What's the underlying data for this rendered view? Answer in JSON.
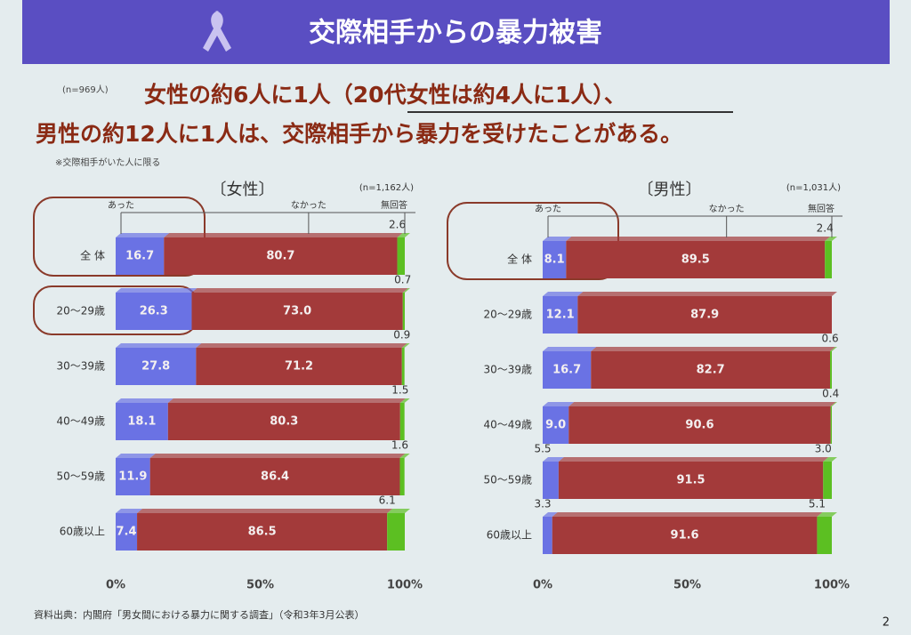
{
  "slide": {
    "title": "交際相手からの暴力被害",
    "sample": "(n=969人)",
    "headline_1": "女性の約6人に1人（20代女性は約4人に1人）、",
    "headline_2": "男性の約12人に1人は、交際相手から暴力を受けたことがある。",
    "note": "※交際相手がいた人に限る",
    "source": "資料出典：内閣府「男女間における暴力に関する調査」（令和3年3月公表）",
    "page": "2"
  },
  "chart_data": [
    {
      "type": "stacked-bar",
      "title": "〔女性〕",
      "subtitle": "(n=1,162人)",
      "categories": [
        "全 体",
        "20～29歳",
        "30～39歳",
        "40～49歳",
        "50～59歳",
        "60歳以上"
      ],
      "series": [
        {
          "name": "あった",
          "color": "#6a72e4",
          "values": [
            16.7,
            26.3,
            27.8,
            18.1,
            11.9,
            7.4
          ],
          "value_labels": [
            "16.7",
            "26.3",
            "27.8",
            "18.1",
            "11.9",
            "7.4"
          ]
        },
        {
          "name": "なかった",
          "color": "#a33a3a",
          "values": [
            80.7,
            73.0,
            71.2,
            80.3,
            86.4,
            86.5
          ],
          "value_labels": [
            "80.7",
            "73.0",
            "71.2",
            "80.3",
            "86.4",
            "86.5"
          ]
        },
        {
          "name": "無回答",
          "color": "#5cbf22",
          "values": [
            2.6,
            0.7,
            0.9,
            1.5,
            1.6,
            6.1
          ],
          "value_labels": [
            "2.6",
            "0.7",
            "0.9",
            "1.5",
            "1.6",
            "6.1"
          ]
        }
      ],
      "xlim": [
        0,
        100
      ],
      "xticks": [
        {
          "value": 0,
          "label": "0%"
        },
        {
          "value": 50,
          "label": "50%"
        },
        {
          "value": 100,
          "label": "100%"
        }
      ]
    },
    {
      "type": "stacked-bar",
      "title": "〔男性〕",
      "subtitle": "(n=1,031人)",
      "categories": [
        "全 体",
        "20～29歳",
        "30～39歳",
        "40～49歳",
        "50～59歳",
        "60歳以上"
      ],
      "series": [
        {
          "name": "あった",
          "color": "#6a72e4",
          "values": [
            8.1,
            12.1,
            16.7,
            9.0,
            5.5,
            3.3
          ],
          "value_labels": [
            "8.1",
            "12.1",
            "16.7",
            "9.0",
            "5.5",
            "3.3"
          ]
        },
        {
          "name": "なかった",
          "color": "#a33a3a",
          "values": [
            89.5,
            87.9,
            82.7,
            90.6,
            91.5,
            91.6
          ],
          "value_labels": [
            "89.5",
            "87.9",
            "82.7",
            "90.6",
            "91.5",
            "91.6"
          ]
        },
        {
          "name": "無回答",
          "color": "#5cbf22",
          "values": [
            2.4,
            0,
            0.6,
            0.4,
            3.0,
            5.1
          ],
          "value_labels": [
            "2.4",
            null,
            "0.6",
            "0.4",
            "3.0",
            "5.1"
          ]
        }
      ],
      "xlim": [
        0,
        100
      ],
      "xticks": [
        {
          "value": 0,
          "label": "0%"
        },
        {
          "value": 50,
          "label": "50%"
        },
        {
          "value": 100,
          "label": "100%"
        }
      ]
    }
  ]
}
